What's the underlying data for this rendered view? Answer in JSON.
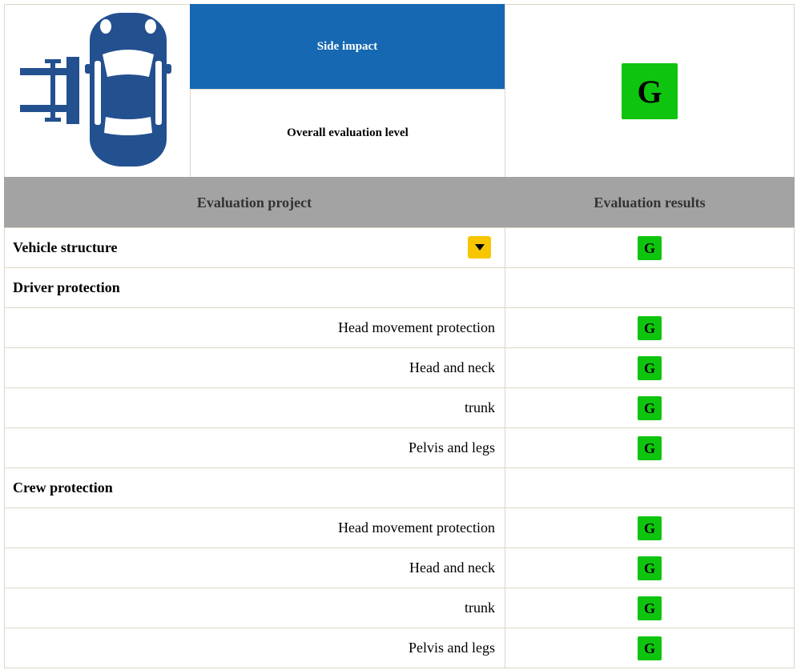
{
  "header": {
    "title": "Side impact",
    "subtitle": "Overall evaluation level",
    "rating": "G"
  },
  "table": {
    "columns": [
      "Evaluation project",
      "Evaluation results"
    ],
    "groups": [
      {
        "title": "Vehicle structure",
        "result": "G"
      },
      {
        "title": "Driver protection",
        "items": [
          {
            "label": "Head movement protection",
            "result": "G"
          },
          {
            "label": "Head and neck",
            "result": "G"
          },
          {
            "label": "trunk",
            "result": "G"
          },
          {
            "label": "Pelvis and legs",
            "result": "G"
          }
        ]
      },
      {
        "title": "Crew protection",
        "items": [
          {
            "label": "Head movement protection",
            "result": "G"
          },
          {
            "label": "Head and neck",
            "result": "G"
          },
          {
            "label": "trunk",
            "result": "G"
          },
          {
            "label": "Pelvis and legs",
            "result": "G"
          }
        ]
      }
    ]
  }
}
